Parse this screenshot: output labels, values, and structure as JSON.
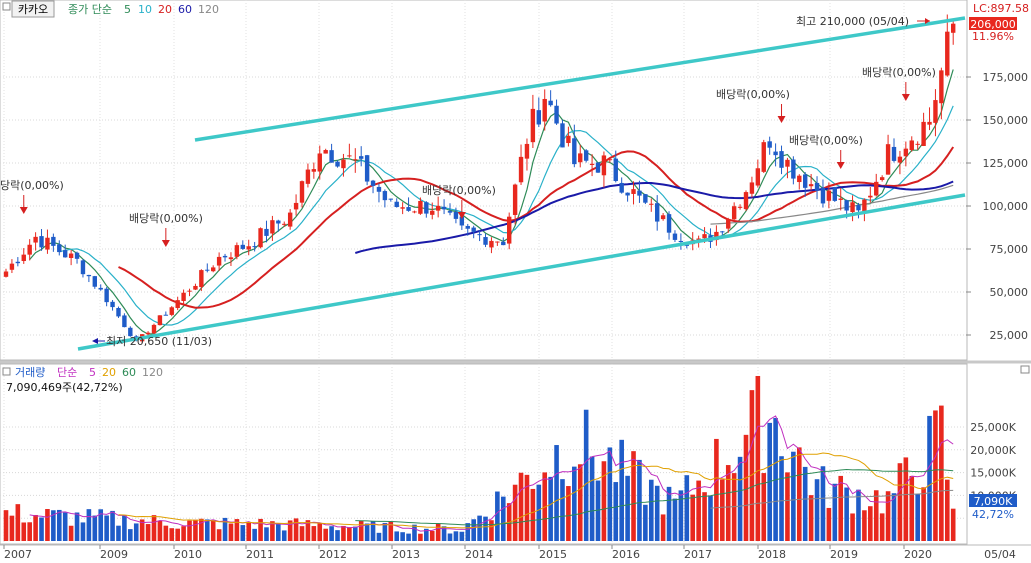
{
  "price_panel": {
    "stock_name": "카카오",
    "ma_title": "종가 단순",
    "ma_periods": [
      "5",
      "10",
      "20",
      "60",
      "120"
    ],
    "ma_colors": [
      "#2e8b57",
      "#29b1c9",
      "#d62020",
      "#1a1aa8",
      "#888888"
    ],
    "lc_label": "LC:897.58",
    "current_price": "206,000",
    "current_change": "11.96%",
    "high_annotation": "최고 210,000 (05/04)",
    "low_annotation": "최저 20,650 (11/03)",
    "dividend_label": "배당락(0,00%)",
    "dividend_label_cut": "당락(0,00%)",
    "y_ticks": [
      25000,
      50000,
      75000,
      100000,
      125000,
      150000,
      175000
    ],
    "y_tick_labels": [
      "25,000",
      "50,000",
      "75,000",
      "100,000",
      "125,000",
      "150,000",
      "175,000"
    ]
  },
  "volume_panel": {
    "title": "거래량",
    "ma_title": "단순",
    "ma_periods": [
      "5",
      "20",
      "60",
      "120"
    ],
    "ma_colors": [
      "#c030c0",
      "#e0a000",
      "#2e8b57",
      "#888888"
    ],
    "total_text": "7,090,469주(42,72%)",
    "current_volume": "7,090K",
    "current_ratio": "42,72%",
    "y_ticks": [
      5000000,
      10000000,
      15000000,
      20000000,
      25000000
    ],
    "y_tick_labels": [
      "",
      "10,000K",
      "15,000K",
      "20,000K",
      "25,000K"
    ]
  },
  "x_axis": {
    "labels": [
      "2007",
      "2009",
      "2010",
      "2011",
      "2012",
      "2013",
      "2014",
      "2015",
      "2016",
      "2017",
      "2018",
      "2019",
      "2020"
    ],
    "right_label": "05/04"
  },
  "colors": {
    "up": "#e8281e",
    "down": "#1f5cc8",
    "trend": "#3ec8c8",
    "price_badge": "#e8281e",
    "volume_badge": "#1f5cc8"
  },
  "chart_data": [
    {
      "type": "candlestick",
      "title": "카카오",
      "period": "monthly",
      "ylim": [
        12000,
        213000
      ],
      "approx_close": [
        {
          "x": "2007-01",
          "y": 62000
        },
        {
          "x": "2007-06",
          "y": 82000
        },
        {
          "x": "2008-01",
          "y": 68000
        },
        {
          "x": "2008-06",
          "y": 46000
        },
        {
          "x": "2008-11",
          "y": 20650
        },
        {
          "x": "2009-06",
          "y": 45000
        },
        {
          "x": "2010-01",
          "y": 70000
        },
        {
          "x": "2010-06",
          "y": 78000
        },
        {
          "x": "2011-01",
          "y": 95000
        },
        {
          "x": "2011-06",
          "y": 135000
        },
        {
          "x": "2011-12",
          "y": 125000
        },
        {
          "x": "2012-06",
          "y": 100000
        },
        {
          "x": "2013-01",
          "y": 100000
        },
        {
          "x": "2013-06",
          "y": 85000
        },
        {
          "x": "2014-01",
          "y": 80000
        },
        {
          "x": "2014-05",
          "y": 140000
        },
        {
          "x": "2014-08",
          "y": 165000
        },
        {
          "x": "2015-01",
          "y": 125000
        },
        {
          "x": "2015-06",
          "y": 125000
        },
        {
          "x": "2016-01",
          "y": 100000
        },
        {
          "x": "2016-06",
          "y": 85000
        },
        {
          "x": "2016-10",
          "y": 78000
        },
        {
          "x": "2017-01",
          "y": 85000
        },
        {
          "x": "2017-06",
          "y": 110000
        },
        {
          "x": "2017-10",
          "y": 140000
        },
        {
          "x": "2018-01",
          "y": 125000
        },
        {
          "x": "2018-06",
          "y": 110000
        },
        {
          "x": "2019-01",
          "y": 95000
        },
        {
          "x": "2019-06",
          "y": 130000
        },
        {
          "x": "2020-01",
          "y": 150000
        },
        {
          "x": "2020-05",
          "y": 206000
        }
      ]
    },
    {
      "type": "bar",
      "title": "거래량",
      "period": "monthly",
      "ylim": [
        0,
        29000000
      ],
      "approx_volume": [
        {
          "x": "2007",
          "y": 6000000
        },
        {
          "x": "2009",
          "y": 4000000
        },
        {
          "x": "2011",
          "y": 3500000
        },
        {
          "x": "2013",
          "y": 2500000
        },
        {
          "x": "2014-06",
          "y": 15000000
        },
        {
          "x": "2015-01",
          "y": 22000000
        },
        {
          "x": "2016",
          "y": 8000000
        },
        {
          "x": "2017-10",
          "y": 28000000
        },
        {
          "x": "2018",
          "y": 12000000
        },
        {
          "x": "2019",
          "y": 9000000
        },
        {
          "x": "2020-03",
          "y": 23000000
        },
        {
          "x": "2020-05",
          "y": 7090000
        }
      ]
    }
  ]
}
